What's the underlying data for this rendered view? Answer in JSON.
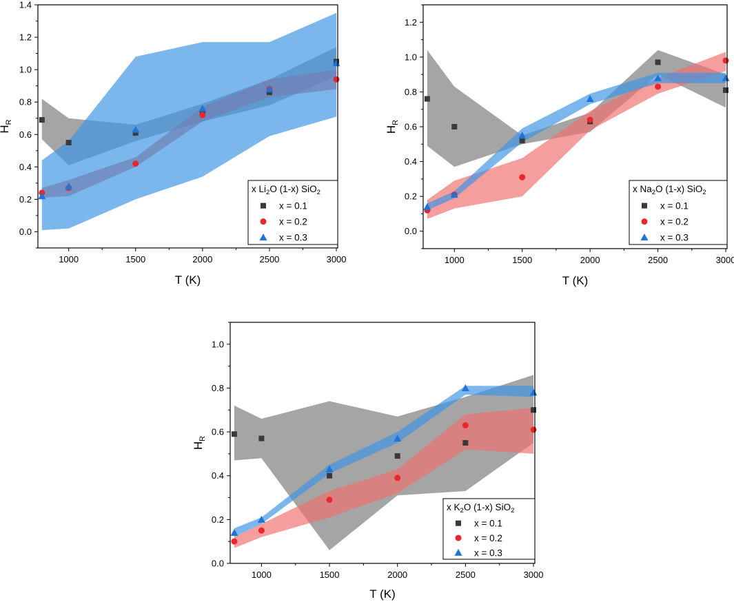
{
  "chart_data": [
    {
      "type": "scatter",
      "id": "li2o",
      "legend_title": {
        "pre": "x Li",
        "sub1": "2",
        "mid": "O (1-x) SiO",
        "sub2": "2"
      },
      "xlabel": "T (K)",
      "ylabel": {
        "main": "H",
        "sub": "R"
      },
      "xlim": [
        770,
        3010
      ],
      "ylim": [
        -0.1,
        1.4
      ],
      "x_ticks": [
        1000,
        1500,
        2000,
        2500,
        3000
      ],
      "x_tick_labels": [
        "1000",
        "1500",
        "2000",
        "2500",
        "3000"
      ],
      "y_ticks": [
        0.0,
        0.2,
        0.4,
        0.6,
        0.8,
        1.0,
        1.2,
        1.4
      ],
      "y_tick_labels": [
        "0.0",
        "0.2",
        "0.4",
        "0.6",
        "0.8",
        "1.0",
        "1.2",
        "1.4"
      ],
      "legend_position": "bottom-right",
      "x": [
        800,
        1000,
        1500,
        2000,
        2500,
        3000
      ],
      "series": [
        {
          "name": "x = 0.1",
          "label": "x = 0.1",
          "color": "#3a3a3a",
          "band_color": "#7a7a7a",
          "marker": "square",
          "values": [
            0.69,
            0.55,
            0.61,
            0.73,
            0.86,
            1.05
          ],
          "upper": [
            0.82,
            0.7,
            0.66,
            0.79,
            0.94,
            1.14
          ],
          "lower": [
            0.57,
            0.41,
            0.56,
            0.68,
            0.78,
            0.96
          ]
        },
        {
          "name": "x = 0.2",
          "label": "x = 0.2",
          "color": "#e8282d",
          "band_color": "#e05050",
          "marker": "circle",
          "values": [
            0.24,
            0.27,
            0.42,
            0.72,
            0.88,
            0.94
          ],
          "upper": [
            0.27,
            0.32,
            0.46,
            0.77,
            0.94,
            1.0
          ],
          "lower": [
            0.21,
            0.22,
            0.4,
            0.68,
            0.83,
            0.88
          ]
        },
        {
          "name": "x = 0.3",
          "label": "x = 0.3",
          "color": "#1f74d6",
          "band_color": "#3d95e3",
          "marker": "triangle",
          "values": [
            0.22,
            0.28,
            0.63,
            0.76,
            0.88,
            1.04
          ],
          "upper": [
            0.44,
            0.56,
            1.08,
            1.17,
            1.17,
            1.35
          ],
          "lower": [
            0.01,
            0.02,
            0.2,
            0.34,
            0.59,
            0.71
          ]
        }
      ]
    },
    {
      "type": "scatter",
      "id": "na2o",
      "legend_title": {
        "pre": "x Na",
        "sub1": "2",
        "mid": "O (1-x) SiO",
        "sub2": "2"
      },
      "xlabel": "T (K)",
      "ylabel": {
        "main": "H",
        "sub": "R"
      },
      "xlim": [
        770,
        3010
      ],
      "ylim": [
        -0.1,
        1.3
      ],
      "x_ticks": [
        1000,
        1500,
        2000,
        2500,
        3000
      ],
      "x_tick_labels": [
        "1000",
        "1500",
        "2000",
        "2500",
        "3000"
      ],
      "y_ticks": [
        0.0,
        0.2,
        0.4,
        0.6,
        0.8,
        1.0,
        1.2
      ],
      "y_tick_labels": [
        "0.0",
        "0.2",
        "0.4",
        "0.6",
        "0.8",
        "1.0",
        "1.2"
      ],
      "legend_position": "bottom-right",
      "x": [
        800,
        1000,
        1500,
        2000,
        2500,
        3000
      ],
      "series": [
        {
          "name": "x = 0.1",
          "label": "x = 0.1",
          "color": "#3a3a3a",
          "band_color": "#7a7a7a",
          "marker": "square",
          "values": [
            0.76,
            0.6,
            0.52,
            0.63,
            0.97,
            0.81
          ],
          "upper": [
            1.04,
            0.83,
            0.55,
            0.68,
            1.04,
            0.9
          ],
          "lower": [
            0.49,
            0.37,
            0.5,
            0.57,
            0.9,
            0.71
          ]
        },
        {
          "name": "x = 0.2",
          "label": "x = 0.2",
          "color": "#e8282d",
          "band_color": "#f07070",
          "marker": "circle",
          "values": [
            0.12,
            0.21,
            0.31,
            0.64,
            0.83,
            0.98
          ],
          "upper": [
            0.18,
            0.29,
            0.42,
            0.69,
            0.88,
            1.03
          ],
          "lower": [
            0.07,
            0.13,
            0.2,
            0.58,
            0.79,
            0.92
          ]
        },
        {
          "name": "x = 0.3",
          "label": "x = 0.3",
          "color": "#1f74d6",
          "band_color": "#3d95e3",
          "marker": "triangle",
          "values": [
            0.14,
            0.21,
            0.55,
            0.76,
            0.88,
            0.88
          ],
          "upper": [
            0.16,
            0.23,
            0.59,
            0.79,
            0.91,
            0.91
          ],
          "lower": [
            0.12,
            0.19,
            0.51,
            0.73,
            0.85,
            0.85
          ]
        }
      ]
    },
    {
      "type": "scatter",
      "id": "k2o",
      "legend_title": {
        "pre": "x K",
        "sub1": "2",
        "mid": "O (1-x) SiO",
        "sub2": "2"
      },
      "xlabel": "T (K)",
      "ylabel": {
        "main": "H",
        "sub": "R"
      },
      "xlim": [
        770,
        3010
      ],
      "ylim": [
        0.0,
        1.1
      ],
      "x_ticks": [
        1000,
        1500,
        2000,
        2500,
        3000
      ],
      "x_tick_labels": [
        "1000",
        "1500",
        "2000",
        "2500",
        "3000"
      ],
      "y_ticks": [
        0.0,
        0.2,
        0.4,
        0.6,
        0.8,
        1.0
      ],
      "y_tick_labels": [
        "0.0",
        "0.2",
        "0.4",
        "0.6",
        "0.8",
        "1.0"
      ],
      "legend_position": "bottom-right",
      "x": [
        800,
        1000,
        1500,
        2000,
        2500,
        3000
      ],
      "series": [
        {
          "name": "x = 0.1",
          "label": "x = 0.1",
          "color": "#3a3a3a",
          "band_color": "#7a7a7a",
          "marker": "square",
          "values": [
            0.59,
            0.57,
            0.4,
            0.49,
            0.55,
            0.7
          ],
          "upper": [
            0.72,
            0.66,
            0.74,
            0.67,
            0.76,
            0.86
          ],
          "lower": [
            0.47,
            0.48,
            0.06,
            0.31,
            0.33,
            0.55
          ]
        },
        {
          "name": "x = 0.2",
          "label": "x = 0.2",
          "color": "#e8282d",
          "band_color": "#f07070",
          "marker": "circle",
          "values": [
            0.1,
            0.15,
            0.29,
            0.39,
            0.63,
            0.61
          ],
          "upper": [
            0.12,
            0.18,
            0.33,
            0.43,
            0.68,
            0.71
          ],
          "lower": [
            0.07,
            0.12,
            0.21,
            0.32,
            0.52,
            0.5
          ]
        },
        {
          "name": "x = 0.3",
          "label": "x = 0.3",
          "color": "#1f74d6",
          "band_color": "#3d95e3",
          "marker": "triangle",
          "values": [
            0.14,
            0.2,
            0.43,
            0.57,
            0.8,
            0.78
          ],
          "upper": [
            0.16,
            0.21,
            0.45,
            0.6,
            0.81,
            0.81
          ],
          "lower": [
            0.12,
            0.18,
            0.41,
            0.55,
            0.77,
            0.76
          ]
        }
      ]
    }
  ]
}
